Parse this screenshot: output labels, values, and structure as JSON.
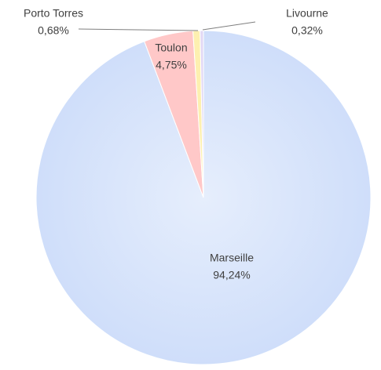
{
  "chart_data": {
    "type": "pie",
    "categories": [
      "Marseille",
      "Toulon",
      "Porto Torres",
      "Livourne"
    ],
    "values": [
      94.24,
      4.75,
      0.68,
      0.32
    ],
    "value_labels": [
      "94,24%",
      "4,75%",
      "0,68%",
      "0,32%"
    ],
    "colors": [
      "#d5e2fb",
      "#ffc8c8",
      "#fdf0b0",
      "#e2d8f4"
    ]
  }
}
